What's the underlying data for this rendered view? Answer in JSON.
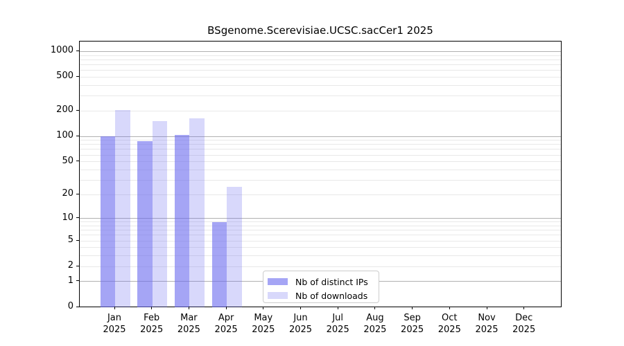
{
  "chart_data": {
    "type": "bar",
    "title": "BSgenome.Scerevisiae.UCSC.sacCer1 2025",
    "categories": [
      "Jan 2025",
      "Feb 2025",
      "Mar 2025",
      "Apr 2025",
      "May 2025",
      "Jun 2025",
      "Jul 2025",
      "Aug 2025",
      "Sep 2025",
      "Oct 2025",
      "Nov 2025",
      "Dec 2025"
    ],
    "series": [
      {
        "name": "Nb of distinct IPs",
        "fill": "rgba(105,105,238,0.60)",
        "values": [
          100,
          87,
          105,
          9,
          0,
          0,
          0,
          0,
          0,
          0,
          0,
          0
        ]
      },
      {
        "name": "Nb of downloads",
        "fill": "rgba(105,105,238,0.26)",
        "values": [
          205,
          152,
          165,
          25,
          0,
          0,
          0,
          0,
          0,
          0,
          0,
          0
        ]
      }
    ],
    "yscale": "log1p",
    "yticks": [
      0,
      1,
      2,
      5,
      10,
      20,
      50,
      100,
      200,
      500,
      1000
    ],
    "ylim": [
      0,
      1290
    ],
    "xlabel": "",
    "ylabel": "",
    "grid": "horizontal",
    "legend_position": "bottom-center"
  },
  "colors": {
    "bar_base": "#6969ee",
    "grid_major": "#b0b0b0",
    "grid_minor": "#e8e8e8",
    "axis": "#000000",
    "legend_border": "#cccccc",
    "background": "#ffffff",
    "text": "#000000"
  }
}
